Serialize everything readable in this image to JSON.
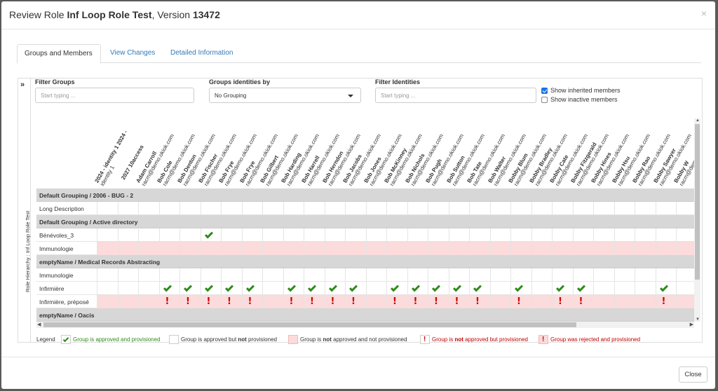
{
  "modal": {
    "title_prefix": "Review Role ",
    "role_name": "Inf Loop Role Test",
    "title_mid": ", Version ",
    "version": "13472",
    "close_symbol": "×"
  },
  "tabs": [
    {
      "label": "Groups and Members",
      "active": true
    },
    {
      "label": "View Changes",
      "active": false
    },
    {
      "label": "Detailed Information",
      "active": false
    }
  ],
  "side_panel": {
    "expand_symbol": "»",
    "label": "Role Hierarchy : Inf Loop Role Test"
  },
  "filters": {
    "filter_groups_label": "Filter Groups",
    "filter_groups_placeholder": "Start typing ...",
    "group_identities_label": "Groups identities by",
    "group_identities_value": "No Grouping",
    "filter_identities_label": "Filter Identities",
    "filter_identities_placeholder": "Start typing ...",
    "show_inherited_label": "Show inherited members",
    "show_inherited_checked": true,
    "show_inactive_label": "Show inactive members",
    "show_inactive_checked": false
  },
  "columns": [
    {
      "name": "2024 - identity 1 2024 -",
      "email": "identity 1"
    },
    {
      "name": "2027 10access",
      "email": ""
    },
    {
      "name": "Adam Carroll",
      "email": "racm@demo.okiok.com"
    },
    {
      "name": "Bob Cole",
      "email": "racm@demo.okiok.com"
    },
    {
      "name": "Bob Denton",
      "email": "racm@demo.okiok.com"
    },
    {
      "name": "Bob Fischer",
      "email": "racm@demo.okiok.com"
    },
    {
      "name": "Bob Frye",
      "email": "racm@demo.okiok.com"
    },
    {
      "name": "Bob Frye",
      "email": "racm@demo.okiok.com"
    },
    {
      "name": "Bob Gilbert",
      "email": "racm@demo.okiok.com"
    },
    {
      "name": "Bob Harding",
      "email": "racm@demo.okiok.com"
    },
    {
      "name": "Bob Harrell",
      "email": "racm@demo.okiok.com"
    },
    {
      "name": "Bob Herndon",
      "email": "racm@demo.okiok.com"
    },
    {
      "name": "Bob Jacobs",
      "email": "racm@demo.okiok.com"
    },
    {
      "name": "Bob Jones",
      "email": "racm@demo.okiok.com"
    },
    {
      "name": "Bob McKinney",
      "email": "racm@demo.okiok.com"
    },
    {
      "name": "Bob Nichols",
      "email": "racm@demo.okiok.com"
    },
    {
      "name": "Bob Pugh",
      "email": "racm@demo.okiok.com"
    },
    {
      "name": "Bob Sutton",
      "email": "racm@demo.okiok.com"
    },
    {
      "name": "Bob Tate",
      "email": "racm@demo.okiok.com"
    },
    {
      "name": "Bob Walter",
      "email": "racm@demo.okiok.com"
    },
    {
      "name": "Bobby Blum",
      "email": "racm@demo.okiok.com"
    },
    {
      "name": "Bobby Bradley",
      "email": "racm@demo.okiok.com"
    },
    {
      "name": "Bobby Cate",
      "email": "racm@demo.okiok.com"
    },
    {
      "name": "Bobby Fitzgerald",
      "email": "racm@demo.okiok.com"
    },
    {
      "name": "Bobby Hines",
      "email": "racm@demo.okiok.com"
    },
    {
      "name": "Bobby Hsu",
      "email": "racm@demo.okiok.com"
    },
    {
      "name": "Bobby Rao",
      "email": "racm@demo.okiok.com"
    },
    {
      "name": "Bobby Sawyer",
      "email": "racm@demo.okiok.com"
    },
    {
      "name": "Bobby W",
      "email": "racm@demo.okiok.com"
    }
  ],
  "rows": [
    {
      "type": "group",
      "label": "Default Grouping / 2006 - BUG - 2"
    },
    {
      "type": "item",
      "label": "Long Description",
      "pink": false,
      "marks": []
    },
    {
      "type": "group",
      "label": "Default Grouping / Active directory"
    },
    {
      "type": "item",
      "label": "Bénévoles_3",
      "pink": false,
      "marks": [
        {
          "col": 5,
          "mark": "check"
        }
      ]
    },
    {
      "type": "item",
      "label": "Immunologie",
      "pink": true,
      "marks": []
    },
    {
      "type": "group",
      "label": "emptyName / Medical Records Abstracting"
    },
    {
      "type": "item",
      "label": "Immunologie",
      "pink": false,
      "marks": []
    },
    {
      "type": "item",
      "label": "Infirmière",
      "pink": false,
      "marks": [
        {
          "col": 3,
          "mark": "check"
        },
        {
          "col": 4,
          "mark": "check"
        },
        {
          "col": 5,
          "mark": "check"
        },
        {
          "col": 6,
          "mark": "check"
        },
        {
          "col": 7,
          "mark": "check"
        },
        {
          "col": 9,
          "mark": "check"
        },
        {
          "col": 10,
          "mark": "check"
        },
        {
          "col": 11,
          "mark": "check"
        },
        {
          "col": 12,
          "mark": "check"
        },
        {
          "col": 14,
          "mark": "check"
        },
        {
          "col": 15,
          "mark": "check"
        },
        {
          "col": 16,
          "mark": "check"
        },
        {
          "col": 17,
          "mark": "check"
        },
        {
          "col": 18,
          "mark": "check"
        },
        {
          "col": 20,
          "mark": "check"
        },
        {
          "col": 22,
          "mark": "check"
        },
        {
          "col": 23,
          "mark": "check"
        },
        {
          "col": 27,
          "mark": "check"
        }
      ]
    },
    {
      "type": "item",
      "label": "Infirmière, préposé",
      "pink": true,
      "marks": [
        {
          "col": 3,
          "mark": "bang"
        },
        {
          "col": 4,
          "mark": "bang"
        },
        {
          "col": 5,
          "mark": "bang"
        },
        {
          "col": 6,
          "mark": "bang"
        },
        {
          "col": 7,
          "mark": "bang"
        },
        {
          "col": 9,
          "mark": "bang"
        },
        {
          "col": 10,
          "mark": "bang"
        },
        {
          "col": 11,
          "mark": "bang"
        },
        {
          "col": 12,
          "mark": "bang"
        },
        {
          "col": 14,
          "mark": "bang"
        },
        {
          "col": 15,
          "mark": "bang"
        },
        {
          "col": 16,
          "mark": "bang"
        },
        {
          "col": 17,
          "mark": "bang"
        },
        {
          "col": 18,
          "mark": "bang"
        },
        {
          "col": 20,
          "mark": "bang"
        },
        {
          "col": 22,
          "mark": "bang"
        },
        {
          "col": 23,
          "mark": "bang"
        },
        {
          "col": 27,
          "mark": "bang"
        }
      ]
    },
    {
      "type": "group",
      "label": "emptyName / Oacis"
    }
  ],
  "legend": {
    "label": "Legend",
    "items": [
      {
        "text_a": "Group is approved and provisioned",
        "text_b": "",
        "text_c": "",
        "swatch": "check",
        "color": "#2e8b1a"
      },
      {
        "text_a": "Group is approved but ",
        "text_b": "not",
        "text_c": " provisioned",
        "swatch": "white",
        "color": "#333333"
      },
      {
        "text_a": "Group is ",
        "text_b": "not",
        "text_c": " approved and not provisioned",
        "swatch": "pink",
        "color": "#333333"
      },
      {
        "text_a": "Group is ",
        "text_b": "not",
        "text_c": " approved but provisioned",
        "swatch": "bang-white",
        "color": "#c00000"
      },
      {
        "text_a": "Group was rejected and provisioned",
        "text_b": "",
        "text_c": "",
        "swatch": "bang-pink",
        "color": "#c00000"
      }
    ]
  },
  "footer": {
    "close_label": "Close"
  }
}
